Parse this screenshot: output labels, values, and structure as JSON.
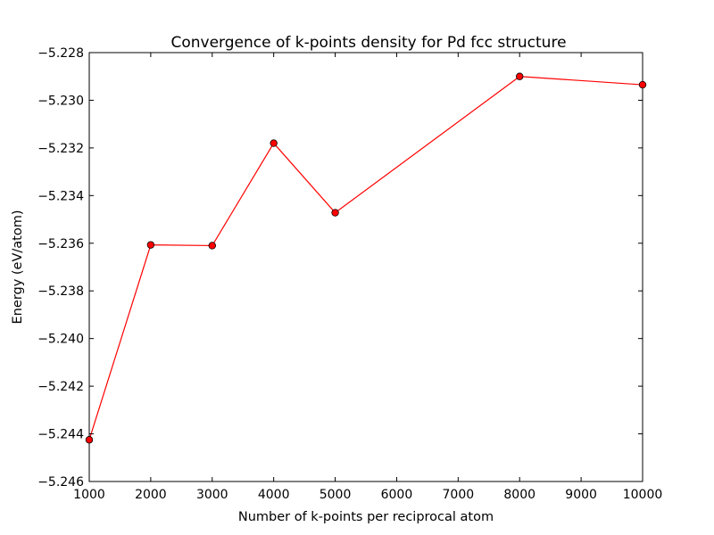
{
  "chart_data": {
    "type": "line",
    "title": "Convergence of k-points density for Pd fcc structure",
    "xlabel": "Number of k-points per reciprocal atom",
    "ylabel": "Energy (eV/atom)",
    "xlim": [
      1000,
      10000
    ],
    "ylim": [
      -5.246,
      -5.228
    ],
    "x_ticks": [
      1000,
      2000,
      3000,
      4000,
      5000,
      6000,
      7000,
      8000,
      9000,
      10000
    ],
    "x_tick_labels": [
      "1000",
      "2000",
      "3000",
      "4000",
      "5000",
      "6000",
      "7000",
      "8000",
      "9000",
      "10000"
    ],
    "y_ticks": [
      -5.246,
      -5.244,
      -5.242,
      -5.24,
      -5.238,
      -5.236,
      -5.234,
      -5.232,
      -5.23,
      -5.228
    ],
    "y_tick_labels": [
      "−5.246",
      "−5.244",
      "−5.242",
      "−5.240",
      "−5.238",
      "−5.236",
      "−5.234",
      "−5.232",
      "−5.230",
      "−5.228"
    ],
    "grid": false,
    "series": [
      {
        "color": "#ff0000",
        "marker": "circle",
        "x": [
          1000,
          2000,
          3000,
          4000,
          5000,
          8000,
          10000
        ],
        "y": [
          -5.24425,
          -5.23607,
          -5.2361,
          -5.2318,
          -5.23472,
          -5.229,
          -5.22935
        ]
      }
    ]
  }
}
